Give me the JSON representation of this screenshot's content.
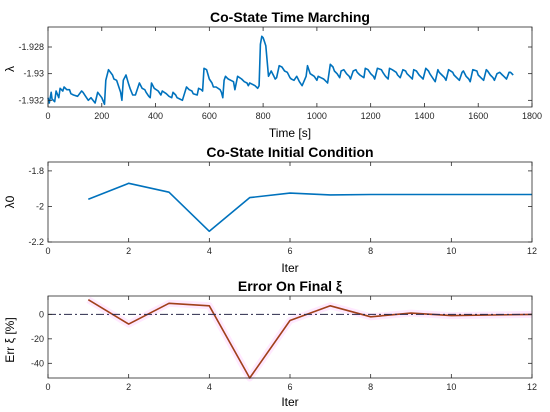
{
  "chart_data": [
    {
      "id": "p1",
      "type": "line",
      "title": "Co-State Time Marching",
      "xlabel": "Time [s]",
      "ylabel": "λ",
      "xlim": [
        0,
        1800
      ],
      "ylim": [
        -1.9325,
        -1.9265
      ],
      "xticks": [
        0,
        200,
        400,
        600,
        800,
        1000,
        1200,
        1400,
        1600,
        1800
      ],
      "yticks": [
        -1.932,
        -1.93,
        -1.928
      ],
      "xtick_labels": [
        "0",
        "200",
        "400",
        "600",
        "800",
        "1000",
        "1200",
        "1400",
        "1600",
        "1800"
      ],
      "ytick_labels": [
        "-1.932",
        "-1.93",
        "-1.928"
      ],
      "grid": false,
      "series": [
        {
          "color": "#0072BD",
          "x": [
            0,
            5,
            12,
            15,
            25,
            30,
            40,
            45,
            55,
            60,
            70,
            80,
            85,
            95,
            110,
            125,
            130,
            140,
            150,
            160,
            175,
            185,
            200,
            210,
            215,
            225,
            240,
            245,
            255,
            270,
            275,
            280,
            290,
            300,
            305,
            315,
            325,
            340,
            350,
            360,
            365,
            375,
            380,
            385,
            395,
            410,
            420,
            425,
            440,
            450,
            460,
            465,
            475,
            480,
            490,
            500,
            515,
            525,
            535,
            540,
            555,
            560,
            570,
            575,
            580,
            590,
            600,
            610,
            615,
            625,
            640,
            645,
            650,
            655,
            660,
            665,
            670,
            680,
            690,
            695,
            705,
            720,
            730,
            740,
            745,
            750,
            760,
            770,
            780,
            785,
            790,
            795,
            800,
            805,
            810,
            820,
            830,
            840,
            845,
            850,
            860,
            870,
            880,
            890,
            900,
            905,
            915,
            925,
            930,
            935,
            945,
            960,
            965,
            975,
            990,
            1000,
            1005,
            1015,
            1025,
            1030,
            1040,
            1050,
            1060,
            1065,
            1075,
            1085,
            1090,
            1100,
            1110,
            1120,
            1125,
            1135,
            1145,
            1150,
            1160,
            1175,
            1180,
            1190,
            1200,
            1210,
            1215,
            1225,
            1240,
            1245,
            1255,
            1265,
            1270,
            1280,
            1295,
            1300,
            1310,
            1320,
            1330,
            1335,
            1345,
            1355,
            1360,
            1370,
            1380,
            1390,
            1395,
            1405,
            1415,
            1420,
            1430,
            1440,
            1450,
            1455,
            1465,
            1475,
            1480,
            1490,
            1505,
            1510,
            1520,
            1530,
            1540,
            1545,
            1555,
            1565,
            1570,
            1580,
            1595,
            1600,
            1610,
            1620,
            1630,
            1635,
            1645,
            1655,
            1660,
            1670,
            1680,
            1690,
            1695,
            1705,
            1715,
            1720,
            1730
          ],
          "y": [
            -1.9318,
            -1.9322,
            -1.9314,
            -1.9319,
            -1.9321,
            -1.9313,
            -1.9318,
            -1.9311,
            -1.9313,
            -1.931,
            -1.9312,
            -1.9312,
            -1.9315,
            -1.9316,
            -1.9317,
            -1.9313,
            -1.9314,
            -1.9317,
            -1.932,
            -1.9318,
            -1.9322,
            -1.9314,
            -1.9318,
            -1.9323,
            -1.9305,
            -1.9297,
            -1.9301,
            -1.9304,
            -1.9305,
            -1.9314,
            -1.932,
            -1.9305,
            -1.9301,
            -1.9308,
            -1.9311,
            -1.9316,
            -1.9316,
            -1.9307,
            -1.9311,
            -1.9312,
            -1.9314,
            -1.9317,
            -1.9318,
            -1.9307,
            -1.9311,
            -1.9313,
            -1.9316,
            -1.9313,
            -1.9315,
            -1.9317,
            -1.9318,
            -1.9314,
            -1.9316,
            -1.9318,
            -1.9319,
            -1.932,
            -1.931,
            -1.9312,
            -1.9313,
            -1.9315,
            -1.9316,
            -1.9311,
            -1.9312,
            -1.9313,
            -1.9296,
            -1.9297,
            -1.9304,
            -1.9307,
            -1.931,
            -1.931,
            -1.9312,
            -1.9314,
            -1.9318,
            -1.9305,
            -1.9302,
            -1.9303,
            -1.9304,
            -1.9305,
            -1.9306,
            -1.9312,
            -1.9302,
            -1.9304,
            -1.9306,
            -1.9307,
            -1.9309,
            -1.9307,
            -1.9308,
            -1.9309,
            -1.9311,
            -1.9309,
            -1.9278,
            -1.9272,
            -1.9273,
            -1.9276,
            -1.9279,
            -1.9302,
            -1.9298,
            -1.9302,
            -1.9304,
            -1.9303,
            -1.9294,
            -1.9295,
            -1.9298,
            -1.9299,
            -1.9303,
            -1.9304,
            -1.9305,
            -1.9302,
            -1.9304,
            -1.9306,
            -1.9309,
            -1.9302,
            -1.9294,
            -1.93,
            -1.9302,
            -1.9305,
            -1.9302,
            -1.9303,
            -1.9304,
            -1.9305,
            -1.9307,
            -1.9293,
            -1.9295,
            -1.9298,
            -1.93,
            -1.9303,
            -1.9298,
            -1.9297,
            -1.93,
            -1.9302,
            -1.9304,
            -1.9298,
            -1.9297,
            -1.9299,
            -1.9301,
            -1.9303,
            -1.9296,
            -1.9297,
            -1.93,
            -1.9302,
            -1.9304,
            -1.9296,
            -1.9297,
            -1.9299,
            -1.9302,
            -1.9304,
            -1.9296,
            -1.9297,
            -1.9299,
            -1.9301,
            -1.9303,
            -1.9297,
            -1.9298,
            -1.93,
            -1.9302,
            -1.9304,
            -1.9297,
            -1.9298,
            -1.9301,
            -1.9303,
            -1.9304,
            -1.9296,
            -1.9298,
            -1.93,
            -1.9303,
            -1.9306,
            -1.9297,
            -1.9299,
            -1.9301,
            -1.9303,
            -1.9305,
            -1.9297,
            -1.9299,
            -1.9301,
            -1.9303,
            -1.9305,
            -1.9299,
            -1.9298,
            -1.9302,
            -1.9304,
            -1.9306,
            -1.9297,
            -1.9298,
            -1.9301,
            -1.9303,
            -1.9305,
            -1.9297,
            -1.9298,
            -1.9301,
            -1.9303,
            -1.9305,
            -1.93,
            -1.9299,
            -1.9301,
            -1.9302,
            -1.9304,
            -1.9299,
            -1.9299,
            -1.9301
          ]
        }
      ]
    },
    {
      "id": "p2",
      "type": "line",
      "title": "Co-State Initial Condition",
      "xlabel": "Iter",
      "ylabel": "λ0",
      "xlim": [
        0,
        12
      ],
      "ylim": [
        -2.2,
        -1.75
      ],
      "xticks": [
        0,
        2,
        4,
        6,
        8,
        10,
        12
      ],
      "yticks": [
        -2.2,
        -2,
        -1.8
      ],
      "xtick_labels": [
        "0",
        "2",
        "4",
        "6",
        "8",
        "10",
        "12"
      ],
      "ytick_labels": [
        "-2.2",
        "-2",
        "-1.8"
      ],
      "grid": false,
      "series": [
        {
          "color": "#0072BD",
          "x": [
            1,
            2,
            3,
            4,
            5,
            6,
            7,
            8,
            9,
            10,
            11,
            12
          ],
          "y": [
            -1.96,
            -1.87,
            -1.92,
            -2.14,
            -1.95,
            -1.925,
            -1.935,
            -1.933,
            -1.933,
            -1.933,
            -1.933,
            -1.933
          ]
        }
      ]
    },
    {
      "id": "p3",
      "type": "line",
      "title": "Error On Final ξ",
      "xlabel": "Iter",
      "ylabel": "Err ξ [%]",
      "xlim": [
        0,
        12
      ],
      "ylim": [
        -52,
        15
      ],
      "xticks": [
        0,
        2,
        4,
        6,
        8,
        10,
        12
      ],
      "yticks": [
        -40,
        -20,
        0
      ],
      "xtick_labels": [
        "0",
        "2",
        "4",
        "6",
        "8",
        "10",
        "12"
      ],
      "ytick_labels": [
        "-40",
        "-20",
        "0"
      ],
      "grid": false,
      "series": [
        {
          "color": "#A0401A",
          "x": [
            1,
            2,
            3,
            4,
            5,
            6,
            7,
            8,
            9,
            10,
            11,
            12
          ],
          "y": [
            12,
            -8,
            9,
            7,
            -52,
            -5,
            7,
            -2,
            1,
            -1,
            -0.5,
            0
          ],
          "glow": "#FF4DFF"
        },
        {
          "color": "#2A2A4A",
          "style": "dashdot",
          "x": [
            0,
            12
          ],
          "y": [
            0,
            0
          ]
        }
      ]
    }
  ]
}
